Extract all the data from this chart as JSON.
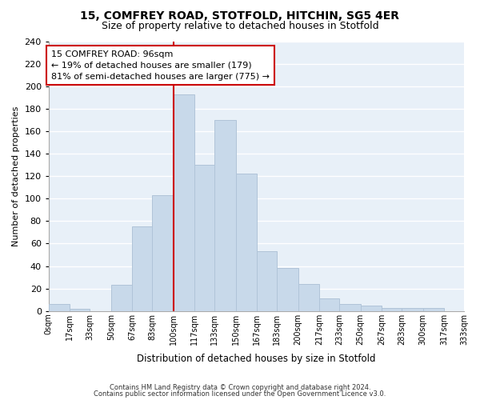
{
  "title": "15, COMFREY ROAD, STOTFOLD, HITCHIN, SG5 4ER",
  "subtitle": "Size of property relative to detached houses in Stotfold",
  "xlabel": "Distribution of detached houses by size in Stotfold",
  "ylabel": "Number of detached properties",
  "bar_color": "#c8d9ea",
  "bar_edge_color": "#b0c4d8",
  "bin_edges": [
    0,
    17,
    33,
    50,
    67,
    83,
    100,
    117,
    133,
    150,
    167,
    183,
    200,
    217,
    233,
    250,
    267,
    283,
    300,
    317,
    333
  ],
  "bar_heights": [
    6,
    2,
    0,
    23,
    75,
    103,
    193,
    130,
    170,
    122,
    53,
    38,
    24,
    11,
    6,
    5,
    3,
    3,
    3,
    0
  ],
  "tick_labels": [
    "0sqm",
    "17sqm",
    "33sqm",
    "50sqm",
    "67sqm",
    "83sqm",
    "100sqm",
    "117sqm",
    "133sqm",
    "150sqm",
    "167sqm",
    "183sqm",
    "200sqm",
    "217sqm",
    "233sqm",
    "250sqm",
    "267sqm",
    "283sqm",
    "300sqm",
    "317sqm",
    "333sqm"
  ],
  "ylim": [
    0,
    240
  ],
  "yticks": [
    0,
    20,
    40,
    60,
    80,
    100,
    120,
    140,
    160,
    180,
    200,
    220,
    240
  ],
  "vline_x": 100,
  "vline_color": "#cc0000",
  "annotation_text": "15 COMFREY ROAD: 96sqm\n← 19% of detached houses are smaller (179)\n81% of semi-detached houses are larger (775) →",
  "annotation_box_color": "white",
  "annotation_box_edgecolor": "#cc0000",
  "footer_line1": "Contains HM Land Registry data © Crown copyright and database right 2024.",
  "footer_line2": "Contains public sector information licensed under the Open Government Licence v3.0.",
  "plot_bg_color": "#e8f0f8",
  "fig_bg_color": "#ffffff",
  "grid_color": "#ffffff",
  "title_fontsize": 10,
  "subtitle_fontsize": 9
}
